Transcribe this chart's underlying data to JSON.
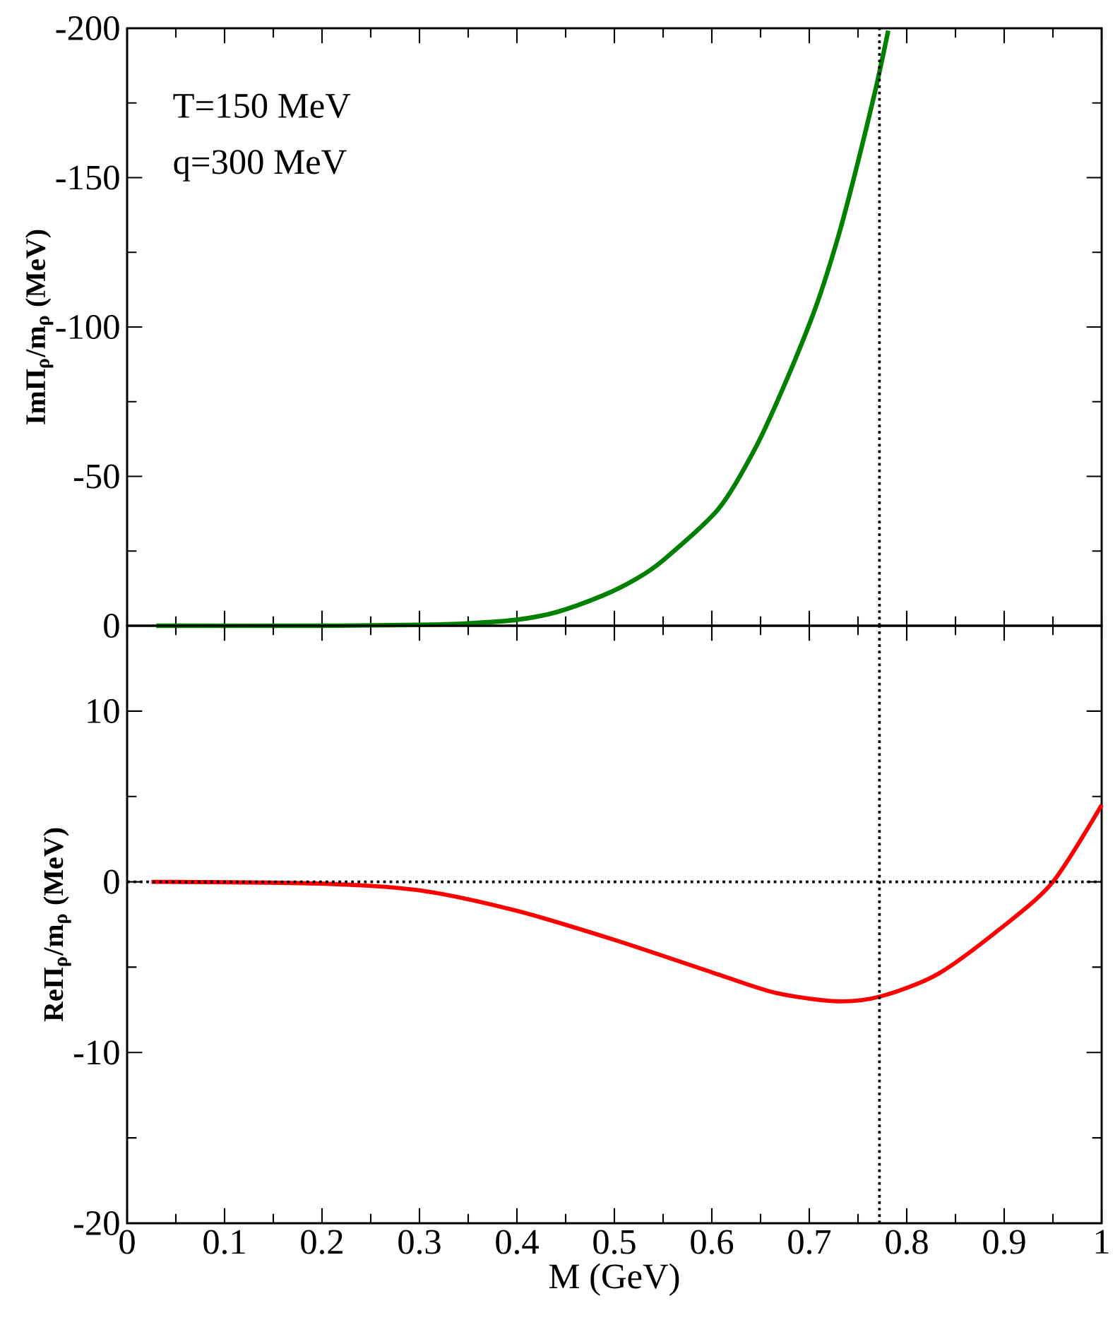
{
  "chart_data": [
    {
      "type": "line",
      "ylabel": "ImΠ$_{ρ}$/m$_{ρ}$ (MeV)",
      "annotations": [
        "T=150 MeV",
        "q=300 MeV"
      ],
      "tick_labels": "y",
      "xlim": [
        0,
        1
      ],
      "xticks": [
        0,
        0.1,
        0.2,
        0.3,
        0.4,
        0.5,
        0.6,
        0.7,
        0.8,
        0.9,
        1
      ],
      "ylim": [
        0,
        -200
      ],
      "yticks": [
        0,
        -50,
        -100,
        -150,
        -200
      ],
      "ref_lines": [
        {
          "axis": "x",
          "value": 0.772,
          "line_style": "dotted",
          "color": "#000000"
        }
      ],
      "series": [
        {
          "color": "#008000",
          "x": [
            0.03,
            0.2,
            0.3,
            0.35,
            0.4,
            0.441,
            0.488,
            0.522,
            0.55,
            0.607,
            0.645,
            0.678,
            0.707,
            0.73,
            0.749,
            0.768,
            0.781
          ],
          "values": [
            0,
            0,
            -0.3,
            -0.8,
            -2,
            -4.6,
            -10.1,
            -15.6,
            -21.9,
            -39.2,
            -59.7,
            -83.3,
            -107,
            -130.6,
            -154,
            -179.5,
            -199.2
          ]
        }
      ]
    },
    {
      "type": "line",
      "ylabel": "ReΠ$_{ρ}$/m$_{ρ}$ (MeV)",
      "xlabel": "M (GeV)",
      "xlim": [
        0,
        1
      ],
      "xticks": [
        0,
        0.1,
        0.2,
        0.3,
        0.4,
        0.5,
        0.6,
        0.7,
        0.8,
        0.9,
        1
      ],
      "ylim": [
        -20,
        15
      ],
      "yticks": [
        -20,
        -10,
        0,
        10
      ],
      "ref_lines": [
        {
          "axis": "x",
          "value": 0.772,
          "line_style": "dotted",
          "color": "#000000"
        },
        {
          "axis": "y",
          "value": 0,
          "line_style": "dotted",
          "color": "#000000"
        }
      ],
      "series": [
        {
          "color": "#ff0000",
          "x": [
            0.025,
            0.196,
            0.3,
            0.4,
            0.5,
            0.6,
            0.665,
            0.729,
            0.774,
            0.832,
            0.897,
            0.95,
            1.0
          ],
          "values": [
            0,
            -0.1,
            -0.5,
            -1.7,
            -3.4,
            -5.3,
            -6.5,
            -7.0,
            -6.7,
            -5.4,
            -2.7,
            0,
            4.5
          ]
        }
      ]
    }
  ]
}
